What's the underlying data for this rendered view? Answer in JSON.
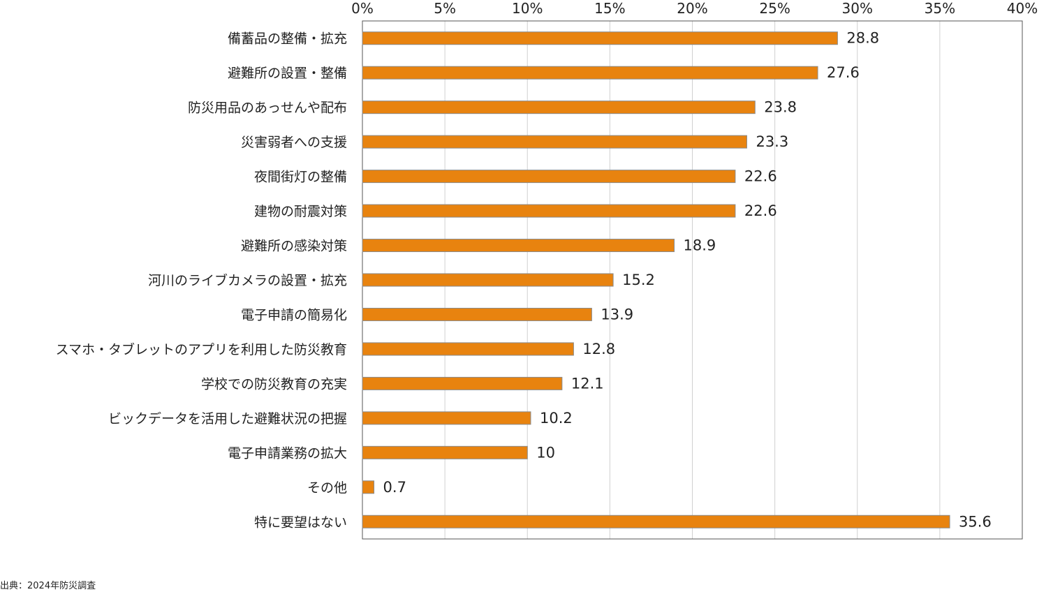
{
  "chart_data": {
    "type": "bar",
    "orientation": "horizontal",
    "title": "",
    "xlabel": "",
    "ylabel": "",
    "xlim": [
      0,
      40
    ],
    "x_ticks": [
      "0%",
      "5%",
      "10%",
      "15%",
      "20%",
      "25%",
      "30%",
      "35%",
      "40%"
    ],
    "x_tick_values": [
      0,
      5,
      10,
      15,
      20,
      25,
      30,
      35,
      40
    ],
    "grid": true,
    "legend": "none",
    "categories": [
      "備蓄品の整備・拡充",
      "避難所の設置・整備",
      "防災用品のあっせんや配布",
      "災害弱者への支援",
      "夜間街灯の整備",
      "建物の耐震対策",
      "避難所の感染対策",
      "河川のライブカメラの設置・拡充",
      "電子申請の簡易化",
      "スマホ・タブレットのアプリを利用した防災教育",
      "学校での防災教育の充実",
      "ビックデータを活用した避難状況の把握",
      "電子申請業務の拡大",
      "その他",
      "特に要望はない"
    ],
    "values": [
      28.8,
      27.6,
      23.8,
      23.3,
      22.6,
      22.6,
      18.9,
      15.2,
      13.9,
      12.8,
      12.1,
      10.2,
      10,
      0.7,
      35.6
    ],
    "value_labels": [
      "28.8",
      "27.6",
      "23.8",
      "23.3",
      "22.6",
      "22.6",
      "18.9",
      "15.2",
      "13.9",
      "12.8",
      "12.1",
      "10.2",
      "10",
      "0.7",
      "35.6"
    ],
    "bar_color": "#E8830F",
    "bar_border_color": "#8a8a8a",
    "grid_color": "#d0d0d0"
  },
  "source": "出典：2024年防災調査"
}
